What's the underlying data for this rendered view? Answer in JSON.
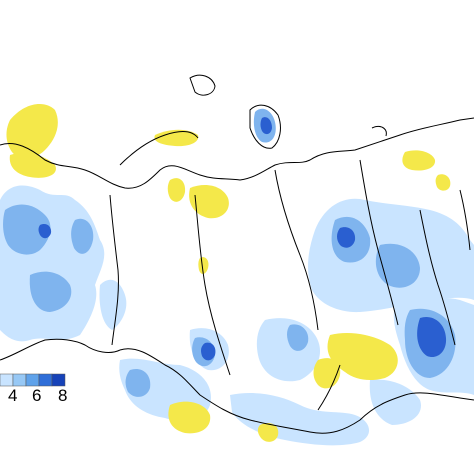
{
  "map": {
    "legend": {
      "tick_labels": [
        "4",
        "6",
        "8"
      ],
      "bins": [
        {
          "color": "#c9e4ff"
        },
        {
          "color": "#97c8f5"
        },
        {
          "color": "#5fa2ea"
        },
        {
          "color": "#2f6ed8"
        },
        {
          "color": "#1642b8"
        }
      ]
    },
    "colors": {
      "positive_anomaly": "#f4e84a",
      "weak_negative": "#c9e4ff",
      "moderate_negative": "#7fb4ee",
      "strong_negative": "#2a5fd0",
      "boundary_line": "#000000",
      "background": "#ffffff"
    }
  }
}
